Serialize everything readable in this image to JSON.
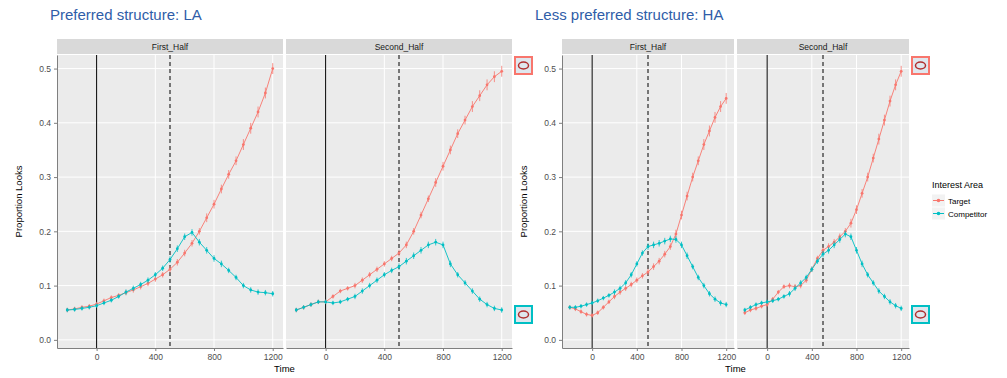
{
  "chart_data": [
    {
      "type": "line",
      "title": "Preferred structure: LA",
      "x_label": "Time",
      "y_label": "Proportion Looks",
      "x": [
        -200,
        -150,
        -100,
        -50,
        0,
        50,
        100,
        150,
        200,
        250,
        300,
        350,
        400,
        450,
        500,
        550,
        600,
        650,
        700,
        750,
        800,
        850,
        900,
        950,
        1000,
        1050,
        1100,
        1150,
        1200
      ],
      "xlim": [
        -270,
        1270
      ],
      "ylim": [
        -0.015,
        0.525
      ],
      "xticks": [
        0,
        400,
        800,
        1200
      ],
      "yticks": [
        {
          "value": 0,
          "label": "0.0"
        },
        0.1,
        0.2,
        0.3,
        0.4,
        0.5
      ],
      "grid": true,
      "vlines": [
        {
          "value": 0,
          "line_style": "solid"
        },
        {
          "value": 500,
          "line_style": "dashed"
        }
      ],
      "panels": [
        {
          "title": "First_Half",
          "series": [
            {
              "name": "Target",
              "color": "#F8766D",
              "marker": "circle",
              "values": [
                0.055,
                0.057,
                0.06,
                0.062,
                0.066,
                0.072,
                0.078,
                0.082,
                0.087,
                0.092,
                0.098,
                0.104,
                0.112,
                0.12,
                0.13,
                0.143,
                0.16,
                0.178,
                0.2,
                0.225,
                0.25,
                0.278,
                0.305,
                0.33,
                0.36,
                0.39,
                0.42,
                0.455,
                0.5
              ],
              "errors": [
                0.004,
                0.004,
                0.004,
                0.004,
                0.004,
                0.004,
                0.004,
                0.004,
                0.005,
                0.005,
                0.005,
                0.005,
                0.005,
                0.005,
                0.006,
                0.006,
                0.006,
                0.006,
                0.006,
                0.008,
                0.008,
                0.008,
                0.008,
                0.008,
                0.01,
                0.01,
                0.01,
                0.01,
                0.01
              ]
            },
            {
              "name": "Competitor",
              "color": "#00BFC4",
              "marker": "circle",
              "values": [
                0.055,
                0.056,
                0.058,
                0.06,
                0.063,
                0.068,
                0.073,
                0.08,
                0.088,
                0.095,
                0.102,
                0.11,
                0.12,
                0.132,
                0.148,
                0.168,
                0.19,
                0.198,
                0.18,
                0.165,
                0.15,
                0.14,
                0.128,
                0.115,
                0.1,
                0.092,
                0.088,
                0.087,
                0.085
              ],
              "errors": [
                0.004,
                0.004,
                0.004,
                0.004,
                0.004,
                0.004,
                0.004,
                0.004,
                0.005,
                0.005,
                0.005,
                0.005,
                0.005,
                0.005,
                0.006,
                0.006,
                0.006,
                0.006,
                0.006,
                0.006,
                0.006,
                0.006,
                0.005,
                0.005,
                0.005,
                0.005,
                0.005,
                0.005,
                0.005
              ]
            }
          ]
        },
        {
          "title": "Second_Half",
          "series": [
            {
              "name": "Target",
              "color": "#F8766D",
              "marker": "circle",
              "values": [
                0.055,
                0.06,
                0.065,
                0.07,
                0.07,
                0.08,
                0.09,
                0.095,
                0.1,
                0.11,
                0.12,
                0.13,
                0.14,
                0.15,
                0.16,
                0.175,
                0.2,
                0.23,
                0.26,
                0.29,
                0.32,
                0.35,
                0.38,
                0.405,
                0.43,
                0.45,
                0.47,
                0.485,
                0.495
              ],
              "errors": [
                0.004,
                0.004,
                0.004,
                0.004,
                0.004,
                0.004,
                0.004,
                0.004,
                0.005,
                0.005,
                0.005,
                0.005,
                0.005,
                0.005,
                0.006,
                0.006,
                0.006,
                0.006,
                0.006,
                0.008,
                0.008,
                0.008,
                0.008,
                0.008,
                0.01,
                0.01,
                0.01,
                0.01,
                0.01
              ]
            },
            {
              "name": "Competitor",
              "color": "#00BFC4",
              "marker": "circle",
              "values": [
                0.055,
                0.06,
                0.065,
                0.07,
                0.07,
                0.068,
                0.07,
                0.075,
                0.08,
                0.09,
                0.1,
                0.11,
                0.12,
                0.128,
                0.135,
                0.145,
                0.155,
                0.165,
                0.175,
                0.18,
                0.175,
                0.14,
                0.12,
                0.105,
                0.09,
                0.075,
                0.065,
                0.058,
                0.055
              ],
              "errors": [
                0.004,
                0.004,
                0.004,
                0.004,
                0.004,
                0.004,
                0.004,
                0.004,
                0.005,
                0.005,
                0.005,
                0.005,
                0.005,
                0.005,
                0.006,
                0.006,
                0.006,
                0.006,
                0.006,
                0.006,
                0.006,
                0.006,
                0.005,
                0.005,
                0.005,
                0.005,
                0.005,
                0.005,
                0.005
              ]
            }
          ]
        }
      ]
    },
    {
      "type": "line",
      "title": "Less preferred structure: HA",
      "x_label": "Time",
      "y_label": "Proportion Looks",
      "legend": "right",
      "legend_title": "Interest Area",
      "x": [
        -200,
        -150,
        -100,
        -50,
        0,
        50,
        100,
        150,
        200,
        250,
        300,
        350,
        400,
        450,
        500,
        550,
        600,
        650,
        700,
        750,
        800,
        850,
        900,
        950,
        1000,
        1050,
        1100,
        1150,
        1200
      ],
      "xlim": [
        -270,
        1270
      ],
      "ylim": [
        -0.015,
        0.525
      ],
      "xticks": [
        0,
        400,
        800,
        1200
      ],
      "yticks": [
        {
          "value": 0,
          "label": "0.0"
        },
        0.1,
        0.2,
        0.3,
        0.4,
        0.5
      ],
      "grid": true,
      "vlines": [
        {
          "value": 0,
          "line_style": "solid"
        },
        {
          "value": 500,
          "line_style": "dashed"
        }
      ],
      "panels": [
        {
          "title": "First_Half",
          "series": [
            {
              "name": "Target",
              "color": "#F8766D",
              "marker": "circle",
              "values": [
                0.06,
                0.057,
                0.052,
                0.047,
                0.045,
                0.05,
                0.06,
                0.07,
                0.08,
                0.088,
                0.095,
                0.102,
                0.11,
                0.118,
                0.125,
                0.135,
                0.145,
                0.158,
                0.172,
                0.195,
                0.23,
                0.265,
                0.3,
                0.33,
                0.36,
                0.385,
                0.41,
                0.43,
                0.445
              ],
              "errors": [
                0.004,
                0.004,
                0.004,
                0.004,
                0.004,
                0.004,
                0.004,
                0.004,
                0.005,
                0.005,
                0.005,
                0.005,
                0.005,
                0.005,
                0.006,
                0.006,
                0.006,
                0.006,
                0.006,
                0.008,
                0.008,
                0.008,
                0.008,
                0.008,
                0.01,
                0.01,
                0.01,
                0.01,
                0.01
              ]
            },
            {
              "name": "Competitor",
              "color": "#00BFC4",
              "marker": "circle",
              "values": [
                0.06,
                0.06,
                0.062,
                0.065,
                0.068,
                0.072,
                0.077,
                0.082,
                0.088,
                0.095,
                0.105,
                0.12,
                0.14,
                0.16,
                0.172,
                0.175,
                0.178,
                0.182,
                0.186,
                0.185,
                0.175,
                0.155,
                0.135,
                0.115,
                0.1,
                0.085,
                0.075,
                0.068,
                0.065
              ],
              "errors": [
                0.004,
                0.004,
                0.004,
                0.004,
                0.004,
                0.004,
                0.004,
                0.004,
                0.005,
                0.005,
                0.005,
                0.005,
                0.005,
                0.005,
                0.006,
                0.006,
                0.006,
                0.006,
                0.006,
                0.006,
                0.006,
                0.006,
                0.005,
                0.005,
                0.005,
                0.005,
                0.005,
                0.005,
                0.005
              ]
            }
          ]
        },
        {
          "title": "Second_Half",
          "series": [
            {
              "name": "Target",
              "color": "#F8766D",
              "marker": "circle",
              "values": [
                0.05,
                0.055,
                0.058,
                0.062,
                0.065,
                0.075,
                0.088,
                0.098,
                0.1,
                0.098,
                0.1,
                0.11,
                0.13,
                0.15,
                0.165,
                0.172,
                0.18,
                0.19,
                0.2,
                0.215,
                0.24,
                0.27,
                0.3,
                0.335,
                0.37,
                0.405,
                0.44,
                0.47,
                0.495
              ],
              "errors": [
                0.004,
                0.004,
                0.004,
                0.004,
                0.004,
                0.004,
                0.004,
                0.004,
                0.005,
                0.005,
                0.005,
                0.005,
                0.005,
                0.005,
                0.006,
                0.006,
                0.006,
                0.006,
                0.006,
                0.008,
                0.008,
                0.008,
                0.008,
                0.008,
                0.01,
                0.01,
                0.01,
                0.01,
                0.01
              ]
            },
            {
              "name": "Competitor",
              "color": "#00BFC4",
              "marker": "circle",
              "values": [
                0.055,
                0.06,
                0.065,
                0.068,
                0.07,
                0.072,
                0.075,
                0.08,
                0.085,
                0.095,
                0.105,
                0.115,
                0.13,
                0.145,
                0.158,
                0.165,
                0.175,
                0.185,
                0.195,
                0.19,
                0.165,
                0.14,
                0.12,
                0.105,
                0.09,
                0.08,
                0.07,
                0.063,
                0.058
              ],
              "errors": [
                0.004,
                0.004,
                0.004,
                0.004,
                0.004,
                0.004,
                0.004,
                0.004,
                0.005,
                0.005,
                0.005,
                0.005,
                0.005,
                0.005,
                0.006,
                0.006,
                0.006,
                0.006,
                0.006,
                0.006,
                0.006,
                0.006,
                0.005,
                0.005,
                0.005,
                0.005,
                0.005,
                0.005,
                0.005
              ]
            }
          ]
        }
      ]
    }
  ]
}
